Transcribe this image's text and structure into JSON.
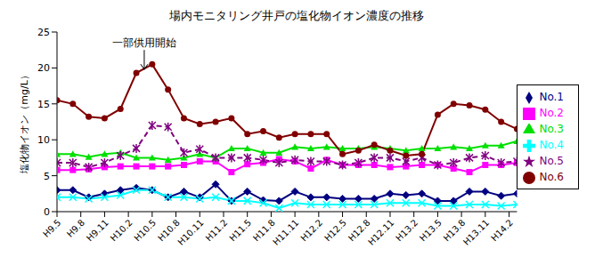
{
  "chart_data": {
    "type": "line",
    "title": "場内モニタリング井戸の塩化物イオン濃度の推移",
    "y_label": "塩化物イオン（mg/L）",
    "x": [
      0,
      2,
      4,
      6,
      8,
      10,
      12,
      14,
      16,
      18,
      20,
      22,
      24,
      26,
      28,
      30,
      32,
      34,
      36,
      38,
      40,
      42,
      44,
      46,
      48,
      50,
      52,
      54,
      56,
      58
    ],
    "xlim": [
      0,
      58
    ],
    "xticks": [
      {
        "value": 0,
        "label": "H9.5"
      },
      {
        "value": 3,
        "label": "H9.8"
      },
      {
        "value": 6,
        "label": "H9.11"
      },
      {
        "value": 9,
        "label": "H10.2"
      },
      {
        "value": 12,
        "label": "H10.5"
      },
      {
        "value": 15,
        "label": "H10.8"
      },
      {
        "value": 18,
        "label": "H10.11"
      },
      {
        "value": 21,
        "label": "H11.2"
      },
      {
        "value": 24,
        "label": "H11.5"
      },
      {
        "value": 27,
        "label": "H11.8"
      },
      {
        "value": 30,
        "label": "H11.11"
      },
      {
        "value": 33,
        "label": "H12.2"
      },
      {
        "value": 36,
        "label": "H12.5"
      },
      {
        "value": 39,
        "label": "H12.8"
      },
      {
        "value": 42,
        "label": "H12.11"
      },
      {
        "value": 45,
        "label": "H13.2"
      },
      {
        "value": 48,
        "label": "H13.5"
      },
      {
        "value": 51,
        "label": "H13.8"
      },
      {
        "value": 54,
        "label": "H13.11"
      },
      {
        "value": 57,
        "label": "H14.2"
      }
    ],
    "ylim": [
      0,
      25
    ],
    "yticks": [
      0,
      5,
      10,
      15,
      20,
      25
    ],
    "grid": false,
    "legend": "right",
    "annotations": [
      {
        "text": "一部供用開始",
        "x": 11,
        "y": 23
      }
    ],
    "series": [
      {
        "name": "No.1",
        "color": "#000080",
        "marker": "diamond",
        "line_style": "solid",
        "values": [
          3,
          3,
          2,
          2.5,
          3,
          3.3,
          3,
          2,
          2.8,
          2,
          3.8,
          1.5,
          2.8,
          1.6,
          1.5,
          2.8,
          2,
          2,
          1.8,
          1.8,
          1.8,
          2.5,
          2.3,
          2.5,
          1.5,
          1.5,
          2.8,
          2.8,
          2.2,
          2.5
        ]
      },
      {
        "name": "No.2",
        "color": "#ff00ff",
        "marker": "square",
        "line_style": "solid",
        "values": [
          5.8,
          5.8,
          5.9,
          6.2,
          6.3,
          6.3,
          6.3,
          6.3,
          6.5,
          7,
          7,
          5.5,
          6.6,
          6.8,
          7.3,
          7,
          6,
          7.2,
          6.5,
          6.5,
          6.5,
          6.2,
          6.3,
          6.5,
          6.5,
          6,
          5.5,
          6.5,
          6.5,
          6.8
        ]
      },
      {
        "name": "No.3",
        "color": "#00e000",
        "marker": "triangle",
        "line_style": "solid",
        "values": [
          8,
          8,
          7.6,
          8,
          8.2,
          7.5,
          7.5,
          7.2,
          7.5,
          8,
          7.5,
          8.8,
          8.8,
          8.2,
          8.2,
          9,
          8.8,
          9,
          8.8,
          8.8,
          9,
          8.8,
          8.5,
          8.8,
          8.8,
          9,
          8.8,
          9.2,
          9.2,
          9.8
        ]
      },
      {
        "name": "No.4",
        "color": "#00ffff",
        "marker": "x",
        "line_style": "solid",
        "values": [
          2,
          2,
          1.8,
          2,
          2.3,
          3,
          3,
          2,
          2,
          1.8,
          2,
          1.5,
          1.5,
          1.2,
          0.5,
          1.2,
          1,
          1,
          1,
          1,
          1,
          1.2,
          1.2,
          1.2,
          0.8,
          0.8,
          1,
          1,
          0.8,
          1
        ]
      },
      {
        "name": "No.5",
        "color": "#800080",
        "marker": "star",
        "line_style": "dashed",
        "values": [
          6.8,
          6.8,
          6.2,
          6.8,
          7.8,
          8.8,
          12,
          11.8,
          8.2,
          8.7,
          7.5,
          7.5,
          7.5,
          7.2,
          6.8,
          7.2,
          7,
          7,
          6.5,
          6.8,
          7.5,
          7.5,
          7,
          7.5,
          6.5,
          6.8,
          7.5,
          7.8,
          6.8,
          7
        ]
      },
      {
        "name": "No.6",
        "color": "#800000",
        "marker": "circle",
        "line_style": "solid",
        "values": [
          15.5,
          15,
          13.2,
          13,
          14.3,
          19.3,
          20.5,
          17,
          13,
          12.2,
          12.5,
          13,
          10.8,
          11.2,
          10.3,
          10.8,
          10.8,
          10.8,
          8,
          8.5,
          9.3,
          8.5,
          7.8,
          8,
          13.5,
          15,
          14.8,
          14.2,
          12.5,
          11.5
        ]
      }
    ]
  }
}
